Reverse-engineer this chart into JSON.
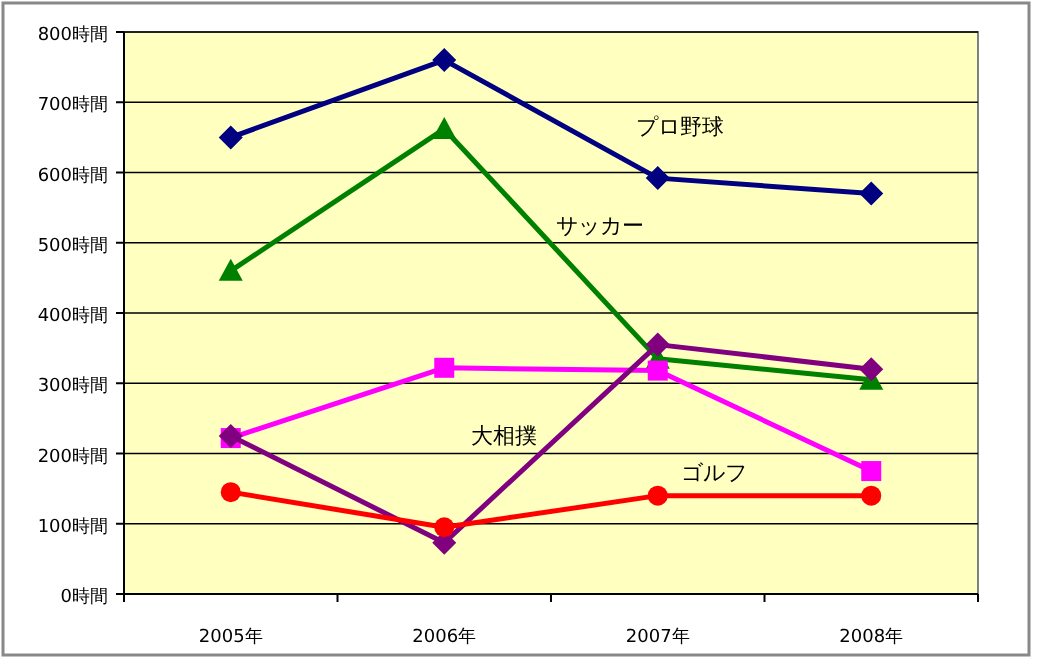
{
  "chart_data": {
    "type": "line",
    "categories": [
      "2005年",
      "2006年",
      "2007年",
      "2008年"
    ],
    "series": [
      {
        "name": "プロ野球",
        "color": "#000080",
        "marker": "diamond",
        "values": [
          650,
          760,
          592,
          570
        ]
      },
      {
        "name": "サッカー",
        "color": "#008000",
        "marker": "triangle",
        "values": [
          460,
          662,
          335,
          305
        ]
      },
      {
        "color": "#ff00ff",
        "marker": "square",
        "values": [
          222,
          322,
          318,
          175
        ]
      },
      {
        "name": "大相撲",
        "color": "#800080",
        "marker": "diamond",
        "values": [
          225,
          73,
          355,
          320
        ]
      },
      {
        "name": "ゴルフ",
        "color": "#ff0000",
        "marker": "circle",
        "values": [
          145,
          95,
          140,
          140
        ]
      }
    ],
    "ylim": [
      0,
      800
    ],
    "yticks": [
      {
        "value": 0,
        "label": "0時間"
      },
      {
        "value": 100,
        "label": "100時間"
      },
      {
        "value": 200,
        "label": "200時間"
      },
      {
        "value": 300,
        "label": "300時間"
      },
      {
        "value": 400,
        "label": "400時間"
      },
      {
        "value": 500,
        "label": "500時間"
      },
      {
        "value": 600,
        "label": "600時間"
      },
      {
        "value": 700,
        "label": "700時間"
      },
      {
        "value": 800,
        "label": "800時間"
      }
    ],
    "grid": "y",
    "legend": false
  }
}
